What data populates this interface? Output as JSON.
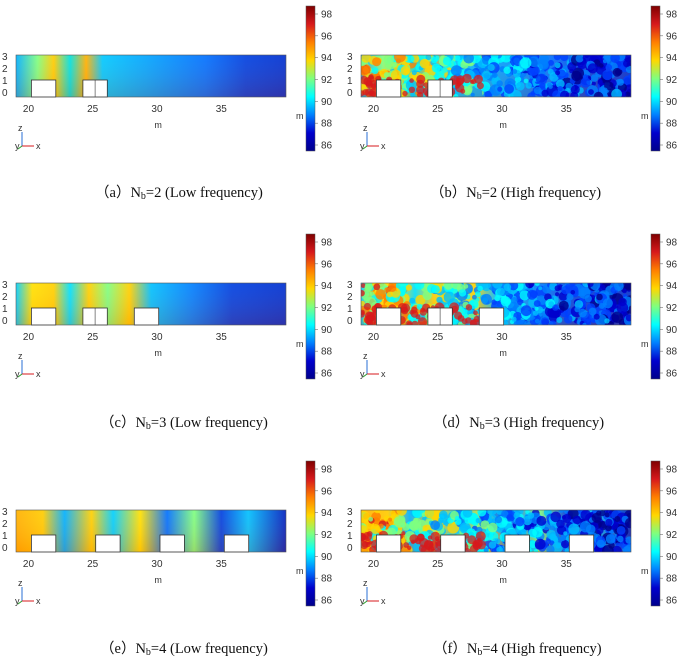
{
  "panels": [
    {
      "id": "a",
      "paren_open": "（",
      "letter": "a",
      "paren_close": "）",
      "n_prefix": "N",
      "n_sub": "b",
      "n_value": "=2",
      "mode": "(Low frequency)",
      "buildings": 2,
      "high": false
    },
    {
      "id": "b",
      "paren_open": "（",
      "letter": "b",
      "paren_close": "）",
      "n_prefix": "N",
      "n_sub": "b",
      "n_value": "=2",
      "mode": "(High frequency)",
      "buildings": 2,
      "high": true
    },
    {
      "id": "c",
      "paren_open": "（",
      "letter": "c",
      "paren_close": "）",
      "n_prefix": "N",
      "n_sub": "b",
      "n_value": "=3",
      "mode": "(Low frequency)",
      "buildings": 3,
      "high": false
    },
    {
      "id": "d",
      "paren_open": "（",
      "letter": "d",
      "paren_close": "）",
      "n_prefix": "N",
      "n_sub": "b",
      "n_value": "=3",
      "mode": "(High frequency)",
      "buildings": 3,
      "high": true
    },
    {
      "id": "e",
      "paren_open": "（",
      "letter": "e",
      "paren_close": "）",
      "n_prefix": "N",
      "n_sub": "b",
      "n_value": "=4",
      "mode": "(Low frequency)",
      "buildings": 4,
      "high": false
    },
    {
      "id": "f",
      "paren_open": "（",
      "letter": "f",
      "paren_close": "）",
      "n_prefix": "N",
      "n_sub": "b",
      "n_value": "=4",
      "mode": "(High frequency)",
      "buildings": 4,
      "high": true
    }
  ],
  "axis": {
    "x_ticks": [
      "20",
      "25",
      "30",
      "35"
    ],
    "y_ticks": [
      "3",
      "2",
      "1",
      "0"
    ],
    "x_unit": "m",
    "triad_z": "z",
    "triad_x": "x",
    "triad_y": "y"
  },
  "colorbar": {
    "ticks": [
      "98",
      "96",
      "94",
      "92",
      "90",
      "88",
      "86"
    ],
    "unit": "m",
    "colors": [
      "#7f0000",
      "#d7191c",
      "#ff7f00",
      "#ffd700",
      "#7fff7f",
      "#00ffff",
      "#0080ff",
      "#0000cd",
      "#00008b"
    ]
  },
  "colors": {
    "accent_red": "#d7191c",
    "accent_blue": "#0000cd"
  }
}
